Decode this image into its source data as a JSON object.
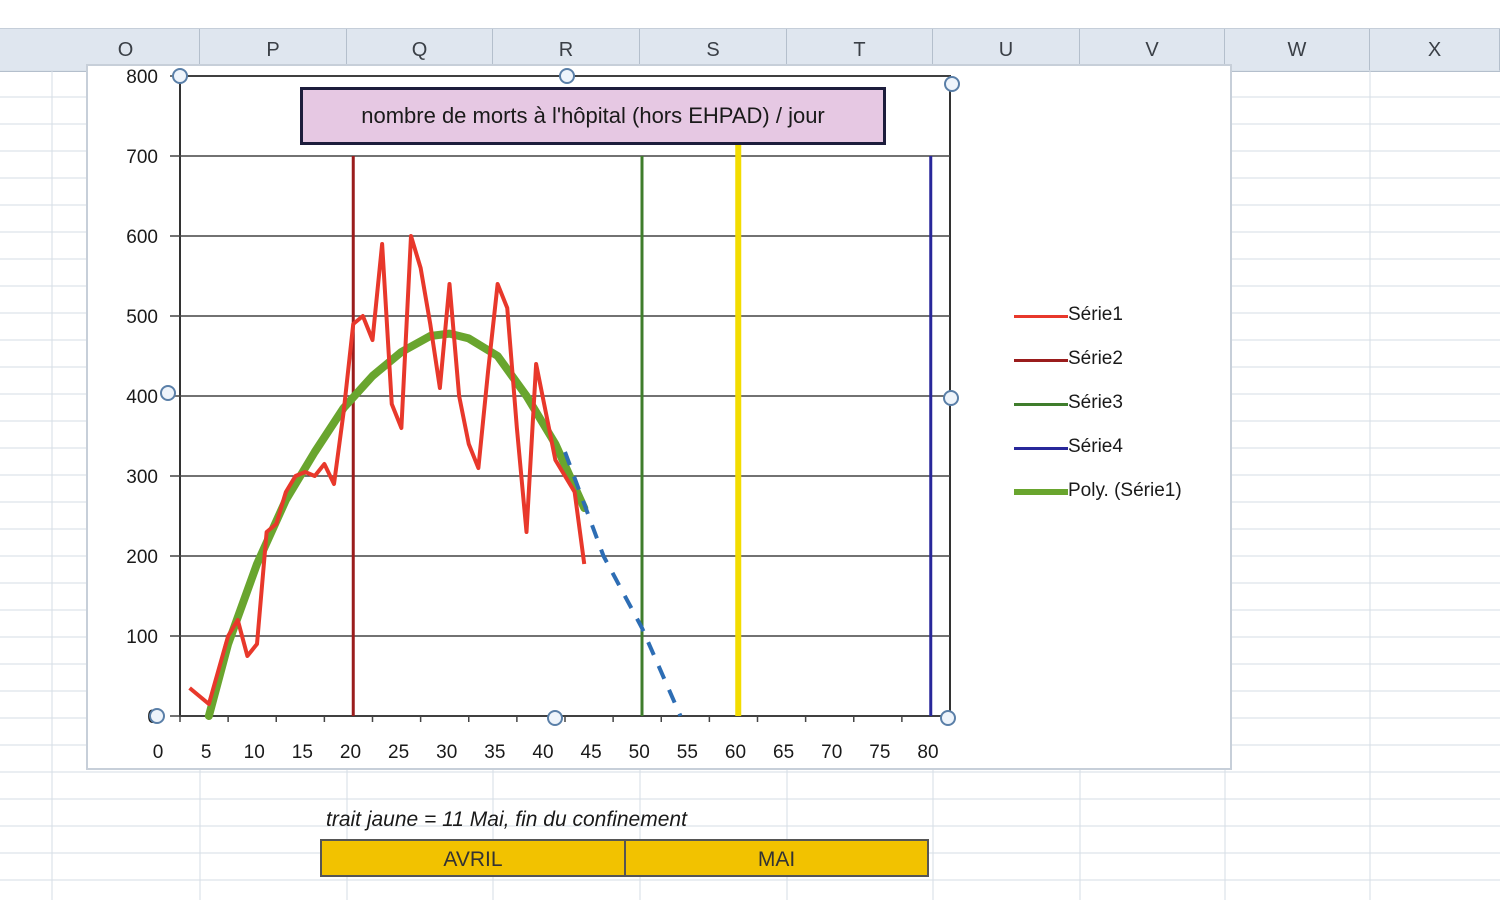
{
  "sheet": {
    "columns": [
      "O",
      "P",
      "Q",
      "R",
      "S",
      "T",
      "U",
      "V",
      "W",
      "X"
    ],
    "note": "trait jaune = 11 Mai, fin du confinement",
    "months": [
      "AVRIL",
      "MAI"
    ],
    "month_color": "#f2c200"
  },
  "chart_data": {
    "type": "line",
    "title": "nombre de morts à l'hôpital (hors EHPAD) / jour",
    "xlim": [
      0,
      80
    ],
    "ylim": [
      0,
      800
    ],
    "x_ticks": [
      0,
      5,
      10,
      15,
      20,
      25,
      30,
      35,
      40,
      45,
      50,
      55,
      60,
      65,
      70,
      75,
      80
    ],
    "y_ticks": [
      0,
      100,
      200,
      300,
      400,
      500,
      600,
      700,
      800
    ],
    "grid": "horizontal",
    "legend_position": "right",
    "series": [
      {
        "name": "Série1",
        "color": "#e8382b",
        "kind": "line",
        "points": [
          [
            1,
            35
          ],
          [
            2,
            25
          ],
          [
            3,
            15
          ],
          [
            5,
            100
          ],
          [
            6,
            120
          ],
          [
            7,
            75
          ],
          [
            8,
            90
          ],
          [
            9,
            230
          ],
          [
            10,
            240
          ],
          [
            11,
            280
          ],
          [
            12,
            300
          ],
          [
            13,
            305
          ],
          [
            14,
            300
          ],
          [
            15,
            315
          ],
          [
            16,
            290
          ],
          [
            17,
            380
          ],
          [
            18,
            490
          ],
          [
            19,
            500
          ],
          [
            20,
            470
          ],
          [
            21,
            590
          ],
          [
            22,
            390
          ],
          [
            23,
            360
          ],
          [
            24,
            600
          ],
          [
            25,
            560
          ],
          [
            26,
            490
          ],
          [
            27,
            410
          ],
          [
            28,
            540
          ],
          [
            29,
            400
          ],
          [
            30,
            340
          ],
          [
            31,
            310
          ],
          [
            32,
            430
          ],
          [
            33,
            540
          ],
          [
            34,
            510
          ],
          [
            35,
            360
          ],
          [
            36,
            230
          ],
          [
            37,
            440
          ],
          [
            38,
            380
          ],
          [
            39,
            320
          ],
          [
            40,
            300
          ],
          [
            41,
            280
          ],
          [
            42,
            190
          ]
        ]
      },
      {
        "name": "Série2",
        "color": "#9a1c1c",
        "kind": "vertical",
        "x": 18
      },
      {
        "name": "Série3",
        "color": "#3f7d2c",
        "kind": "vertical",
        "x": 48
      },
      {
        "name": "Série4",
        "color": "#28279a",
        "kind": "vertical",
        "x": 78
      },
      {
        "name": "Poly. (Série1)",
        "color": "#69a52e",
        "kind": "trend",
        "points": [
          [
            3,
            0
          ],
          [
            5,
            90
          ],
          [
            8,
            190
          ],
          [
            11,
            270
          ],
          [
            14,
            330
          ],
          [
            17,
            385
          ],
          [
            20,
            425
          ],
          [
            23,
            455
          ],
          [
            26,
            475
          ],
          [
            28,
            478
          ],
          [
            30,
            472
          ],
          [
            33,
            450
          ],
          [
            36,
            400
          ],
          [
            39,
            340
          ],
          [
            42,
            260
          ]
        ],
        "dashed_color": "#2d6db4",
        "dashed_points": [
          [
            40,
            330
          ],
          [
            44,
            200
          ],
          [
            48,
            110
          ],
          [
            52,
            0
          ]
        ]
      }
    ],
    "marker_line": {
      "x": 58,
      "color": "#f3dc00"
    }
  }
}
